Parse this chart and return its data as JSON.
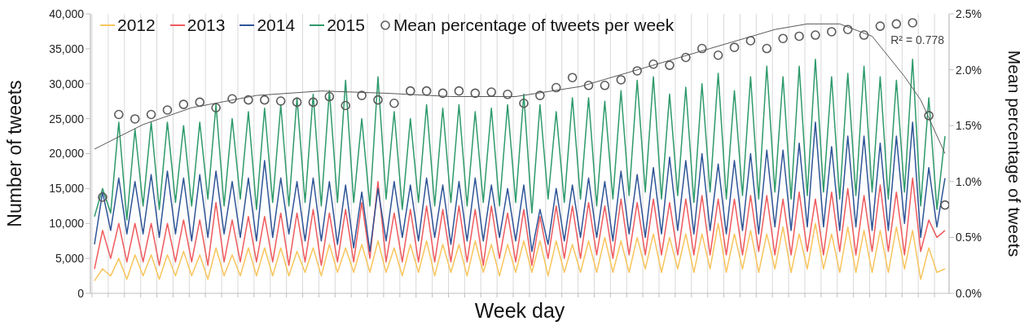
{
  "chart_data": {
    "type": "line",
    "xlabel": "Week day",
    "ylabel": "Number of tweets",
    "y2label": "Mean percentage of tweets",
    "categories": [
      null,
      null,
      null,
      null,
      null,
      null,
      null,
      null,
      null,
      null,
      null,
      null,
      null,
      null,
      null,
      null,
      null,
      null,
      null,
      null,
      null,
      null,
      null,
      null,
      null,
      null,
      null,
      null,
      null,
      null,
      null,
      null,
      null,
      null,
      null,
      null,
      null,
      null,
      null,
      null,
      null,
      null,
      null,
      null,
      null,
      null,
      null,
      null,
      null,
      null,
      null,
      null,
      null,
      null,
      null,
      null,
      null,
      null,
      null,
      null,
      null,
      null,
      null,
      null,
      null,
      null,
      null,
      null,
      null,
      null,
      null,
      null,
      null,
      null,
      null,
      null,
      null,
      null,
      null,
      null,
      null,
      null,
      null,
      null,
      null,
      null,
      null,
      null,
      null,
      null,
      null,
      null,
      null,
      null,
      null,
      null,
      null,
      null,
      null,
      null,
      null,
      null,
      null,
      null,
      null,
      null
    ],
    "series": [
      {
        "name": "2012",
        "color": "#f8c55e",
        "values": [
          1800,
          3500,
          2500,
          5000,
          2000,
          5500,
          2500,
          5500,
          2000,
          5500,
          2500,
          6000,
          2500,
          5500,
          2000,
          6500,
          2500,
          5500,
          2500,
          6500,
          2500,
          6500,
          2500,
          6500,
          2500,
          6000,
          3000,
          6500,
          2500,
          7000,
          3000,
          6500,
          3000,
          7000,
          3000,
          7500,
          3000,
          6500,
          2500,
          7000,
          3000,
          7500,
          2500,
          7000,
          3000,
          7000,
          2500,
          7500,
          3000,
          7000,
          2500,
          7000,
          3000,
          7500,
          3000,
          7500,
          2500,
          7500,
          3000,
          7000,
          3000,
          7500,
          3000,
          8000,
          3000,
          7500,
          3000,
          8000,
          3500,
          8500,
          3000,
          8000,
          3500,
          8500,
          3000,
          8500,
          3500,
          10000,
          3000,
          8500,
          3500,
          9000,
          3000,
          8500,
          3500,
          9500,
          3000,
          8500,
          3500,
          10000,
          3500,
          8500,
          3000,
          9500,
          3000,
          9000,
          3000,
          9000,
          3000,
          9500,
          3500,
          9000,
          2000,
          6500,
          3000,
          3500
        ]
      },
      {
        "name": "2013",
        "color": "#ef5b5e",
        "values": [
          3500,
          9000,
          5000,
          10000,
          4500,
          10000,
          4500,
          10000,
          4000,
          10000,
          4500,
          10500,
          4500,
          10500,
          4000,
          13000,
          4500,
          10500,
          4500,
          11000,
          4500,
          11000,
          4500,
          11500,
          4000,
          11500,
          4500,
          12000,
          4000,
          11500,
          4500,
          12000,
          4500,
          13000,
          5000,
          16000,
          4500,
          11500,
          4500,
          12000,
          4500,
          12500,
          4500,
          12000,
          4500,
          12500,
          4500,
          12000,
          4000,
          12500,
          5000,
          11500,
          4500,
          12000,
          4000,
          11000,
          5000,
          12500,
          5000,
          12500,
          5000,
          13000,
          5500,
          12500,
          5000,
          13500,
          5500,
          13000,
          5500,
          13500,
          5500,
          13000,
          5500,
          13500,
          5500,
          14000,
          5500,
          13500,
          5500,
          13500,
          5500,
          14000,
          6000,
          14000,
          5500,
          13500,
          5500,
          14500,
          6000,
          13500,
          5500,
          14500,
          6000,
          15000,
          5500,
          14000,
          6000,
          15500,
          6000,
          14500,
          5500,
          16500,
          6000,
          10500,
          8000,
          9000
        ]
      },
      {
        "name": "2014",
        "color": "#2f5597",
        "values": [
          7000,
          14500,
          9000,
          16500,
          8500,
          16000,
          8500,
          17000,
          8000,
          17500,
          8500,
          16500,
          7500,
          17000,
          8000,
          17500,
          8500,
          16000,
          8000,
          16500,
          7500,
          19000,
          8000,
          16500,
          8500,
          16000,
          7500,
          16500,
          7500,
          16000,
          7000,
          15500,
          6500,
          14500,
          6000,
          15000,
          7500,
          16000,
          8000,
          15500,
          7500,
          16500,
          8000,
          15500,
          7000,
          16000,
          7500,
          16500,
          7500,
          15500,
          8000,
          15000,
          7500,
          15500,
          6000,
          12000,
          7000,
          15000,
          7500,
          15500,
          8000,
          16500,
          8000,
          16000,
          7500,
          17500,
          8500,
          17000,
          8000,
          18000,
          8500,
          19500,
          9000,
          19000,
          8500,
          20000,
          9000,
          18500,
          8500,
          19000,
          9000,
          20000,
          8500,
          20500,
          9500,
          20500,
          9000,
          21500,
          9500,
          24500,
          9500,
          21000,
          9000,
          22500,
          9500,
          22500,
          9000,
          21500,
          9000,
          22500,
          10000,
          24500,
          8000,
          18000,
          9500,
          16500
        ]
      },
      {
        "name": "2015",
        "color": "#2e9a6b",
        "values": [
          11000,
          15000,
          11500,
          24500,
          10500,
          23500,
          12500,
          24500,
          12000,
          24500,
          13000,
          24000,
          12500,
          24500,
          13500,
          27000,
          12500,
          25000,
          13500,
          26000,
          12000,
          26500,
          13000,
          27000,
          12500,
          28000,
          13000,
          28500,
          12500,
          29000,
          13000,
          30500,
          13000,
          25000,
          12500,
          31000,
          13500,
          26000,
          12000,
          25000,
          13000,
          27000,
          12500,
          26500,
          13000,
          27000,
          12500,
          26000,
          13000,
          26500,
          12500,
          27000,
          13000,
          28500,
          11500,
          27000,
          13500,
          26000,
          13000,
          28000,
          13500,
          28000,
          12500,
          27500,
          13500,
          29000,
          14000,
          30500,
          14500,
          31000,
          13500,
          28500,
          14000,
          29500,
          13000,
          30000,
          14500,
          31500,
          13500,
          29000,
          14000,
          31000,
          13500,
          32500,
          14500,
          31000,
          13500,
          32500,
          14000,
          33500,
          14500,
          31000,
          13500,
          31500,
          14000,
          32500,
          14500,
          31000,
          13500,
          30500,
          14500,
          33500,
          12500,
          28000,
          12000,
          22500
        ]
      },
      {
        "name": "Mean percentage of tweets per week",
        "type": "scatter",
        "axis": "y2",
        "marker": "circle",
        "color": "#595959",
        "values": [
          null,
          0.86,
          null,
          1.6,
          null,
          1.56,
          null,
          1.6,
          null,
          1.64,
          null,
          1.69,
          null,
          1.71,
          null,
          1.66,
          null,
          1.74,
          null,
          1.73,
          null,
          1.73,
          null,
          1.72,
          null,
          1.71,
          null,
          1.71,
          null,
          1.76,
          null,
          1.68,
          null,
          1.77,
          null,
          1.73,
          null,
          1.7,
          null,
          1.81,
          null,
          1.81,
          null,
          1.79,
          null,
          1.81,
          null,
          1.79,
          null,
          1.8,
          null,
          1.78,
          null,
          1.7,
          null,
          1.77,
          null,
          1.84,
          null,
          1.93,
          null,
          1.86,
          null,
          1.86,
          null,
          1.91,
          null,
          1.99,
          null,
          2.05,
          null,
          2.04,
          null,
          2.11,
          null,
          2.19,
          null,
          2.13,
          null,
          2.2,
          null,
          2.26,
          null,
          2.19,
          null,
          2.28,
          null,
          2.3,
          null,
          2.31,
          null,
          2.34,
          null,
          2.36,
          null,
          2.31,
          null,
          2.39,
          null,
          2.41,
          null,
          2.42,
          null,
          1.59,
          null,
          0.79
        ]
      },
      {
        "type": "line",
        "axis": "y2",
        "color": "#595959",
        "values": [
          1.29,
          null,
          null,
          null,
          null,
          null,
          1.51,
          null,
          null,
          null,
          null,
          null,
          1.66,
          null,
          null,
          null,
          null,
          null,
          null,
          null,
          1.77,
          null,
          null,
          null,
          null,
          null,
          null,
          null,
          1.81,
          null,
          null,
          null,
          null,
          null,
          null,
          null,
          1.79,
          null,
          null,
          null,
          null,
          null,
          null,
          null,
          1.76,
          null,
          null,
          null,
          null,
          null,
          null,
          null,
          1.76,
          null,
          null,
          null,
          null,
          null,
          null,
          null,
          1.85,
          null,
          null,
          null,
          null,
          null,
          null,
          null,
          2.02,
          null,
          null,
          null,
          null,
          null,
          null,
          null,
          2.19,
          null,
          null,
          null,
          null,
          null,
          null,
          null,
          2.36,
          null,
          null,
          null,
          2.41,
          null,
          null,
          null,
          2.41,
          null,
          null,
          null,
          2.3,
          null,
          null,
          null,
          1.94,
          null,
          1.73,
          null,
          null,
          1.25
        ]
      }
    ],
    "ylim": [
      0,
      40000
    ],
    "yticks": [
      0,
      {
        "value": 5000,
        "label": "5,000"
      },
      {
        "value": 10000,
        "label": "10,000"
      },
      {
        "value": 15000,
        "label": "15,000"
      },
      {
        "value": 20000,
        "label": "20,000"
      },
      {
        "value": 25000,
        "label": "25,000"
      },
      {
        "value": 30000,
        "label": "30,000"
      },
      {
        "value": 35000,
        "label": "35,000"
      },
      {
        "value": 40000,
        "label": "40,000"
      }
    ],
    "y2lim": [
      0,
      2.5
    ],
    "y2ticks": [
      {
        "value": 0,
        "label": "0.0%"
      },
      {
        "value": 0.5,
        "label": "0.5%"
      },
      {
        "value": 1,
        "label": "1.0%"
      },
      {
        "value": 1.5,
        "label": "1.5%"
      },
      {
        "value": 2,
        "label": "2.0%"
      },
      {
        "value": 2.5,
        "label": "2.5%"
      }
    ],
    "annotations": [
      "R² = 0.778"
    ],
    "grid": "x",
    "legend": "top left",
    "tick_labels": "y"
  }
}
